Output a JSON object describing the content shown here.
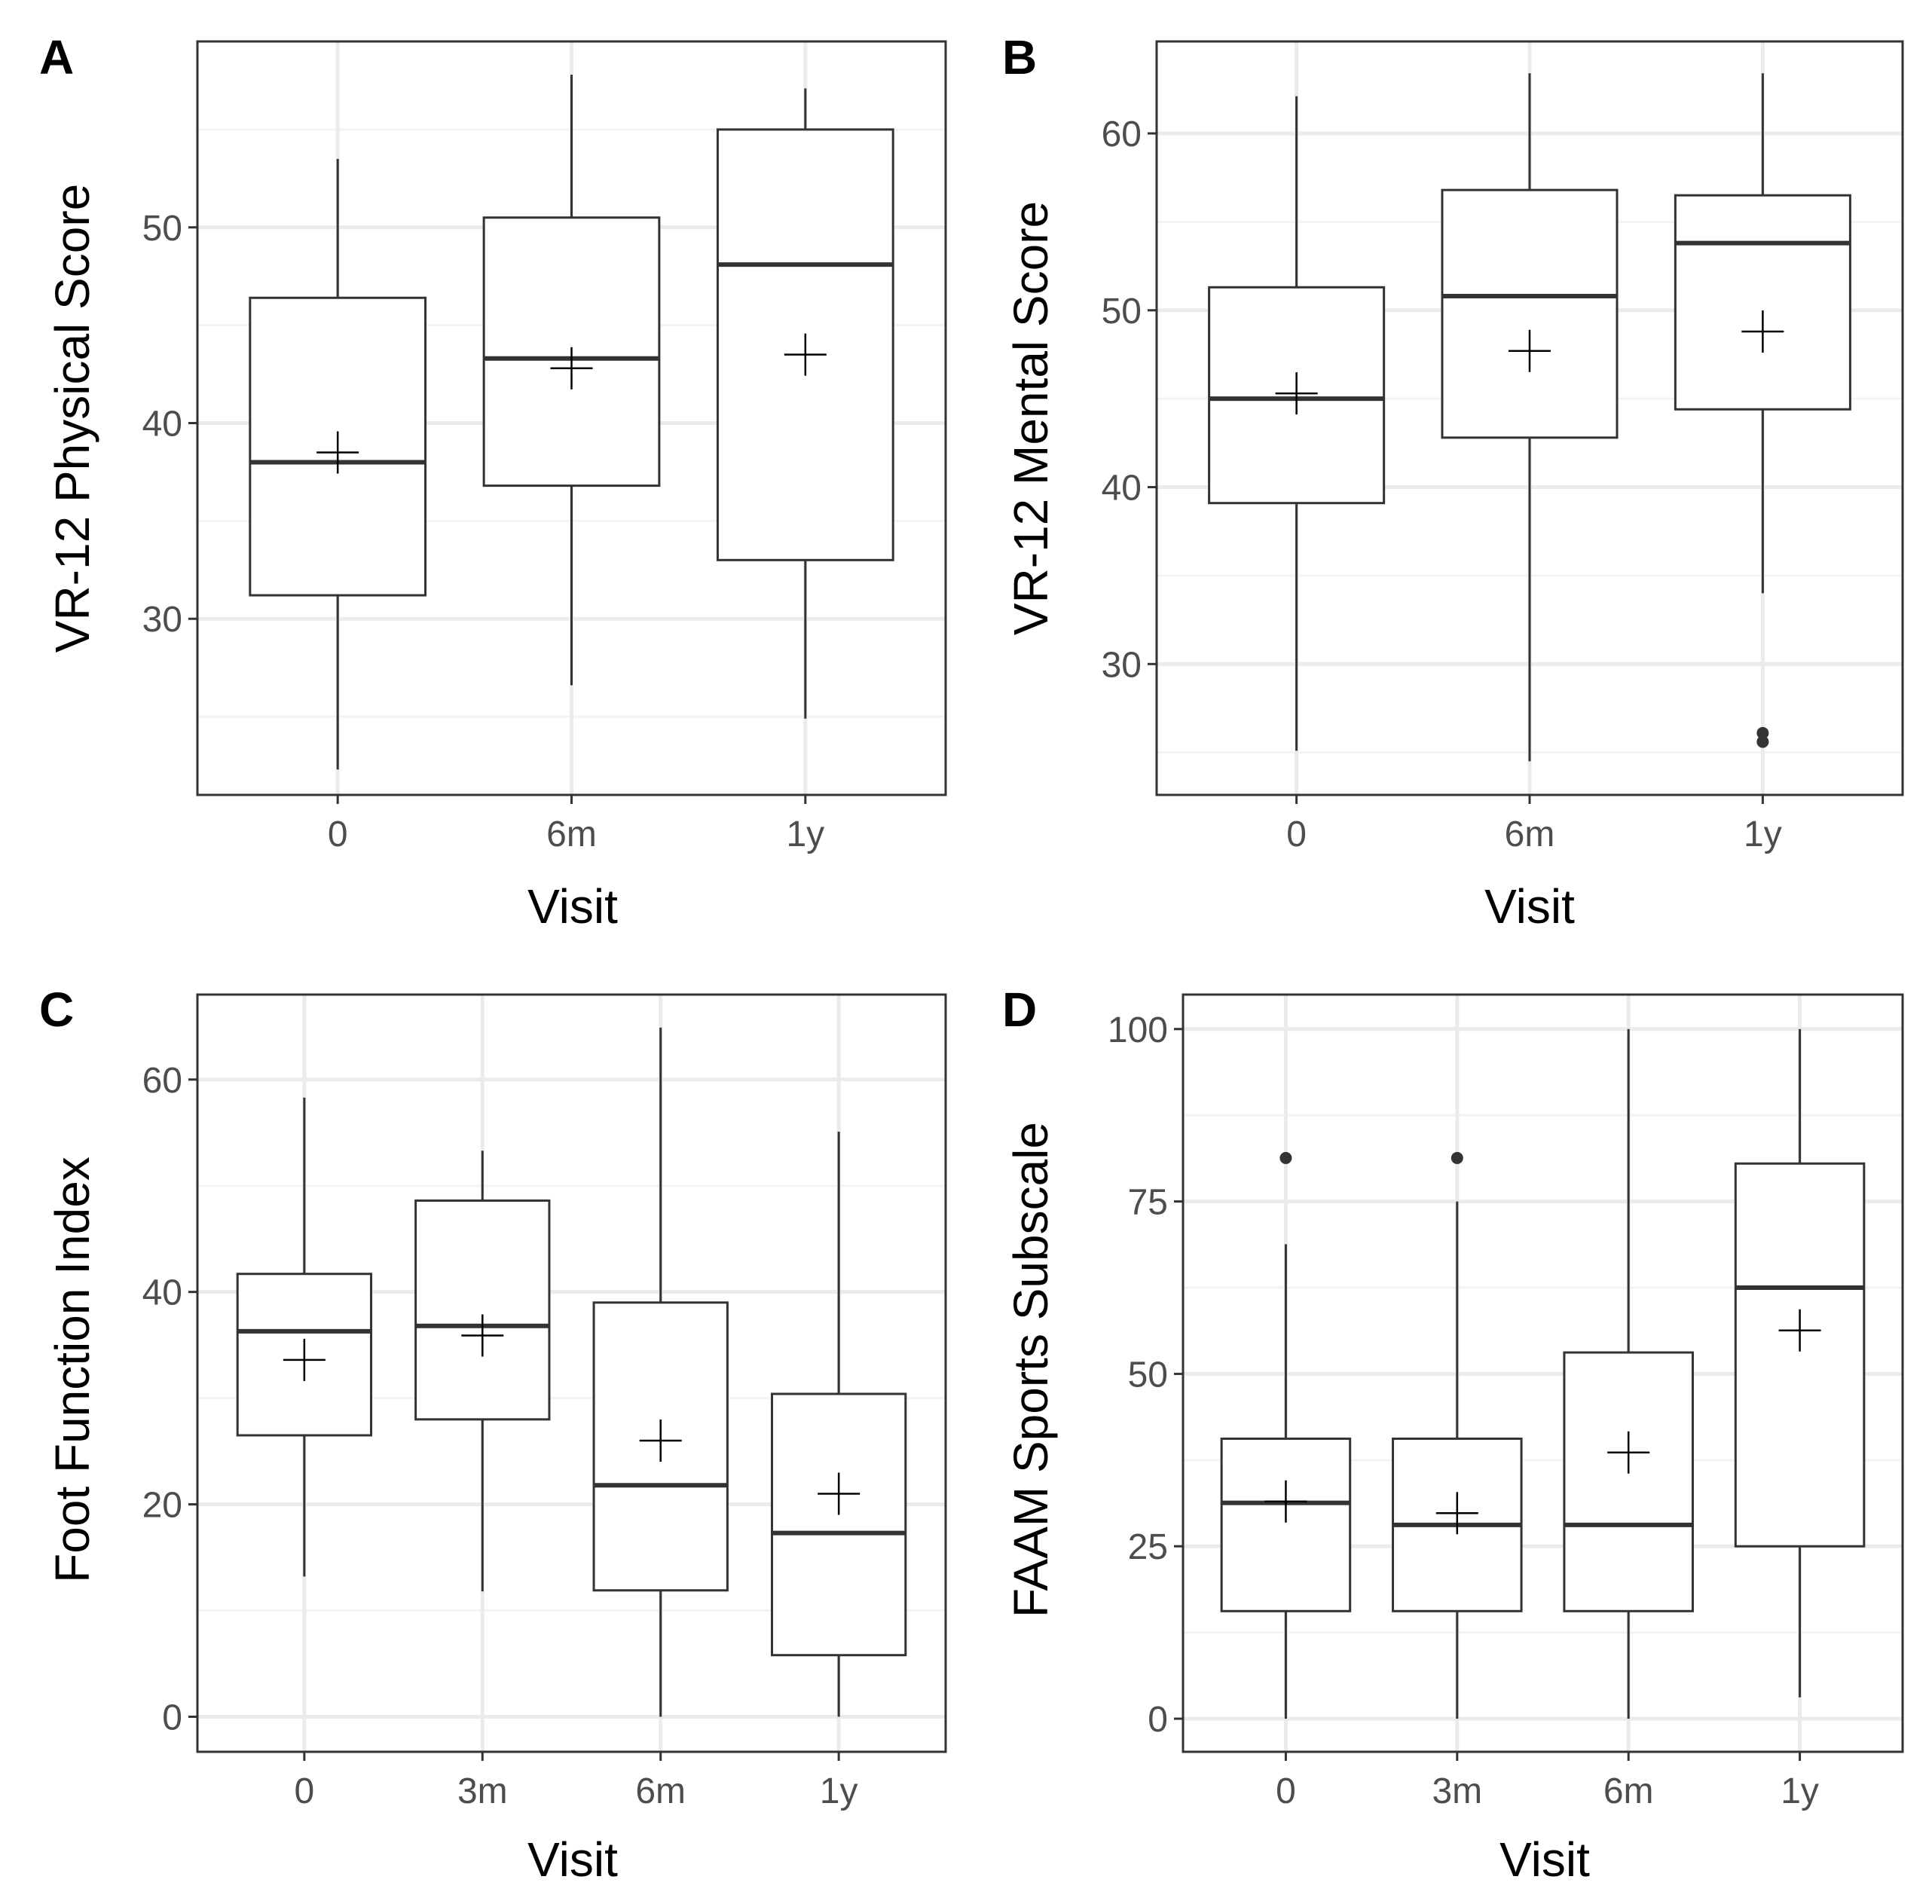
{
  "colors": {
    "background": "#ffffff",
    "grid_major": "#ebebeb",
    "grid_minor": "#f3f3f3",
    "border": "#333333",
    "box_line": "#333333",
    "tick_text": "#4d4d4d"
  },
  "chart_data": [
    {
      "panel": "A",
      "type": "boxplot",
      "xlabel": "Visit",
      "ylabel": "VR-12 Physical Score",
      "ylim": [
        21,
        59.5
      ],
      "yticks": [
        30,
        40,
        50
      ],
      "yminor": [
        25,
        35,
        45,
        55
      ],
      "categories": [
        "0",
        "6m",
        "1y"
      ],
      "boxes": [
        {
          "lower_whisker": 22.3,
          "q1": 31.2,
          "median": 38.0,
          "q3": 46.4,
          "upper_whisker": 53.5,
          "mean": 38.5,
          "outliers": []
        },
        {
          "lower_whisker": 26.6,
          "q1": 36.8,
          "median": 43.3,
          "q3": 50.5,
          "upper_whisker": 57.8,
          "mean": 42.8,
          "outliers": []
        },
        {
          "lower_whisker": 24.9,
          "q1": 33.0,
          "median": 48.1,
          "q3": 55.0,
          "upper_whisker": 57.1,
          "mean": 43.5,
          "outliers": []
        }
      ]
    },
    {
      "panel": "B",
      "type": "boxplot",
      "xlabel": "Visit",
      "ylabel": "VR-12 Mental Score",
      "ylim": [
        22.6,
        65.2
      ],
      "yticks": [
        30,
        40,
        50,
        60
      ],
      "yminor": [
        25,
        35,
        45,
        55
      ],
      "categories": [
        "0",
        "6m",
        "1y"
      ],
      "boxes": [
        {
          "lower_whisker": 25.1,
          "q1": 39.1,
          "median": 45.0,
          "q3": 51.3,
          "upper_whisker": 62.1,
          "mean": 45.3,
          "outliers": []
        },
        {
          "lower_whisker": 24.5,
          "q1": 42.8,
          "median": 50.8,
          "q3": 56.8,
          "upper_whisker": 63.4,
          "mean": 47.7,
          "outliers": []
        },
        {
          "lower_whisker": 34.0,
          "q1": 44.4,
          "median": 53.8,
          "q3": 56.5,
          "upper_whisker": 63.4,
          "mean": 48.8,
          "outliers": [
            25.6,
            26.1
          ]
        }
      ]
    },
    {
      "panel": "C",
      "type": "boxplot",
      "xlabel": "Visit",
      "ylabel": "Foot Function Index",
      "ylim": [
        -3.3,
        68
      ],
      "yticks": [
        0,
        20,
        40,
        60
      ],
      "yminor": [
        10,
        30,
        50
      ],
      "categories": [
        "0",
        "3m",
        "6m",
        "1y"
      ],
      "boxes": [
        {
          "lower_whisker": 13.2,
          "q1": 26.5,
          "median": 36.3,
          "q3": 41.7,
          "upper_whisker": 58.3,
          "mean": 33.6,
          "outliers": []
        },
        {
          "lower_whisker": 11.8,
          "q1": 28.0,
          "median": 36.8,
          "q3": 48.6,
          "upper_whisker": 53.3,
          "mean": 35.9,
          "outliers": []
        },
        {
          "lower_whisker": 0,
          "q1": 11.9,
          "median": 21.8,
          "q3": 39.0,
          "upper_whisker": 64.9,
          "mean": 26.0,
          "outliers": []
        },
        {
          "lower_whisker": 0,
          "q1": 5.8,
          "median": 17.3,
          "q3": 30.4,
          "upper_whisker": 55.1,
          "mean": 21.0,
          "outliers": []
        }
      ]
    },
    {
      "panel": "D",
      "type": "boxplot",
      "xlabel": "Visit",
      "ylabel": "FAAM Sports Subscale",
      "ylim": [
        -4.8,
        105
      ],
      "yticks": [
        0,
        25,
        50,
        75,
        100
      ],
      "yminor": [
        12.5,
        37.5,
        62.5,
        87.5
      ],
      "categories": [
        "0",
        "3m",
        "6m",
        "1y"
      ],
      "boxes": [
        {
          "lower_whisker": 0,
          "q1": 15.6,
          "median": 31.3,
          "q3": 40.6,
          "upper_whisker": 68.8,
          "mean": 31.5,
          "outliers": [
            81.3
          ]
        },
        {
          "lower_whisker": 0,
          "q1": 15.6,
          "median": 28.1,
          "q3": 40.6,
          "upper_whisker": 75.0,
          "mean": 29.8,
          "outliers": [
            81.3
          ]
        },
        {
          "lower_whisker": 0,
          "q1": 15.6,
          "median": 28.1,
          "q3": 53.1,
          "upper_whisker": 100,
          "mean": 38.6,
          "outliers": []
        },
        {
          "lower_whisker": 3.1,
          "q1": 25.0,
          "median": 62.5,
          "q3": 80.5,
          "upper_whisker": 100,
          "mean": 56.3,
          "outliers": []
        }
      ]
    }
  ]
}
